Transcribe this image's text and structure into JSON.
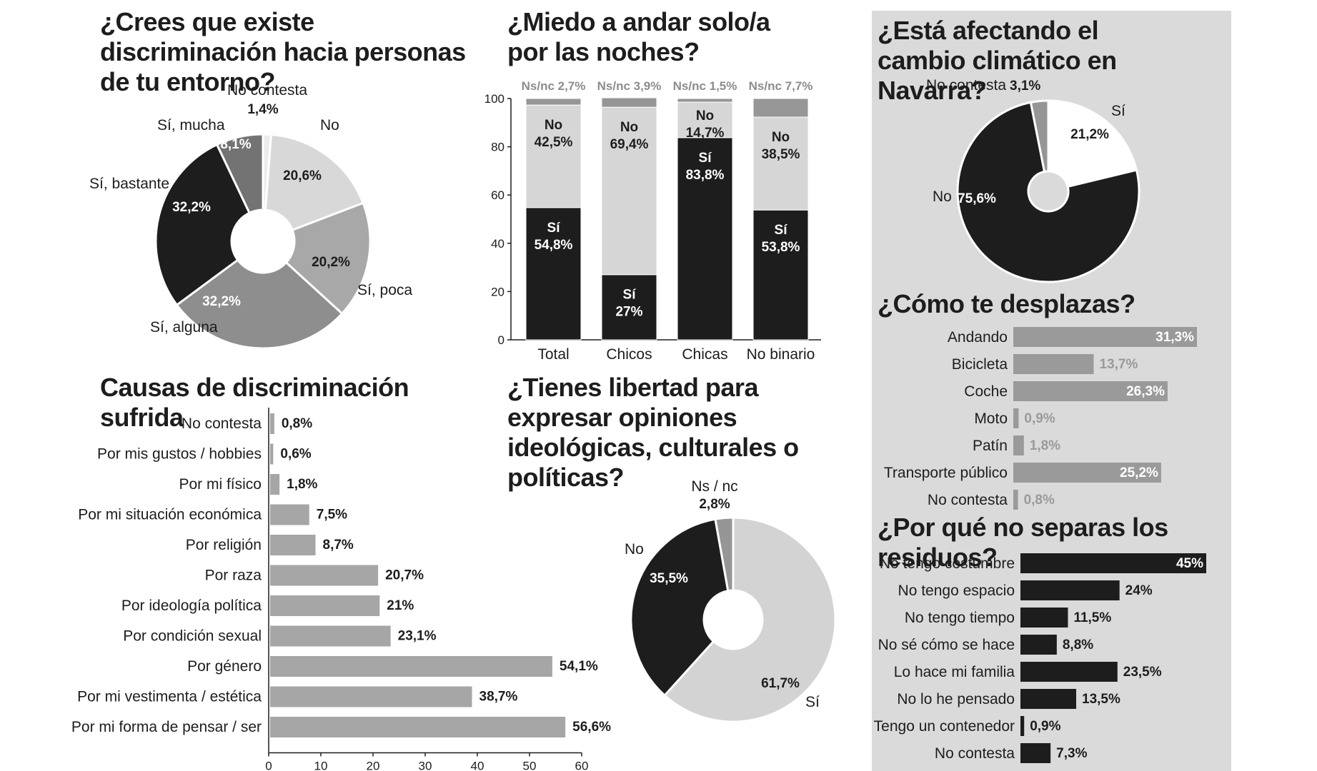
{
  "titles": {
    "discriminacion": "¿Crees que existe discriminación hacia personas de tu entorno?",
    "miedo": "¿Miedo a andar solo/a por las noches?",
    "clima": "¿Está afectando el cambio climático en Navarra?",
    "causas": "Causas de discriminación sufrida",
    "libertad": "¿Tienes libertad para expresar opiniones ideológicas, culturales o políticas?",
    "desplazas": "¿Cómo te desplazas?",
    "residuos": "¿Por qué no separas los residuos?"
  },
  "colors": {
    "black": "#1d1d1d",
    "dark_gray": "#6a6a6a",
    "mid_gray": "#969696",
    "light_gray": "#d6d6d6",
    "lighter_gray": "#ebebeb",
    "panel": "#dadada"
  },
  "chart_data": [
    {
      "id": "discriminacion",
      "type": "pie",
      "title": "¿Crees que existe discriminación hacia personas de tu entorno?",
      "slices": [
        {
          "label": "No contesta",
          "value": 1.4,
          "text": "1,4%",
          "color": "#ececec"
        },
        {
          "label": "No",
          "value": 20.6,
          "text": "20,6%",
          "color": "#d8d8d8"
        },
        {
          "label": "Sí, poca",
          "value": 20.2,
          "text": "20,2%",
          "color": "#a8a8a8"
        },
        {
          "label": "Sí, alguna",
          "value": 32.2,
          "text": "32,2%",
          "color": "#8e8e8e"
        },
        {
          "label": "Sí, bastante",
          "value": 32.2,
          "text": "32,2%",
          "color": "#1d1d1d"
        },
        {
          "label": "Sí, mucha",
          "value": 8.1,
          "text": "8,1%",
          "color": "#737373"
        }
      ]
    },
    {
      "id": "miedo",
      "type": "bar",
      "stacked": true,
      "title": "¿Miedo a andar solo/a por las noches?",
      "categories": [
        "Total",
        "Chicos",
        "Chicas",
        "No binario"
      ],
      "ylim": [
        0,
        100
      ],
      "yticks": [
        "0",
        "20",
        "40",
        "60",
        "80",
        "100"
      ],
      "series": [
        {
          "name": "Sí",
          "values": [
            54.8,
            27,
            83.8,
            53.8
          ],
          "texts": [
            "54,8%",
            "27%",
            "83,8%",
            "53,8%"
          ],
          "color": "#1d1d1d"
        },
        {
          "name": "No",
          "values": [
            42.5,
            69.4,
            14.7,
            38.5
          ],
          "texts": [
            "42,5%",
            "69,4%",
            "14,7%",
            "38,5%"
          ],
          "color": "#d6d6d6"
        },
        {
          "name": "Ns/nc",
          "values": [
            2.7,
            3.9,
            1.5,
            7.7
          ],
          "texts": [
            "Ns/nc 2,7%",
            "Ns/nc 3,9%",
            "Ns/nc 1,5%",
            "Ns/nc 7,7%"
          ],
          "color": "#969696"
        }
      ]
    },
    {
      "id": "clima",
      "type": "pie",
      "title": "¿Está afectando el cambio climático en Navarra?",
      "slices": [
        {
          "label": "Sí",
          "value": 21.2,
          "text": "21,2%",
          "color": "#ffffff"
        },
        {
          "label": "No",
          "value": 75.6,
          "text": "75,6%",
          "color": "#1d1d1d"
        },
        {
          "label": "No contesta",
          "value": 3.1,
          "text": "3,1%",
          "color": "#969696"
        }
      ]
    },
    {
      "id": "causas",
      "type": "bar",
      "orientation": "horizontal",
      "title": "Causas de discriminación sufrida",
      "categories": [
        "No contesta",
        "Por mis gustos / hobbies",
        "Por mi físico",
        "Por mi situación económica",
        "Por religión",
        "Por raza",
        "Por ideología política",
        "Por condición sexual",
        "Por género",
        "Por mi vestimenta / estética",
        "Por mi forma de pensar / ser"
      ],
      "values": [
        0.8,
        0.6,
        1.8,
        7.5,
        8.7,
        20.7,
        21,
        23.1,
        54.1,
        38.7,
        56.6
      ],
      "texts": [
        "0,8%",
        "0,6%",
        "1,8%",
        "7,5%",
        "8,7%",
        "20,7%",
        "21%",
        "23,1%",
        "54,1%",
        "38,7%",
        "56,6%"
      ],
      "xlim": [
        0,
        60
      ],
      "xticks": [
        "0",
        "10",
        "20",
        "30",
        "40",
        "50",
        "60"
      ],
      "color": "#a6a6a6"
    },
    {
      "id": "libertad",
      "type": "pie",
      "title": "¿Tienes libertad para expresar opiniones ideológicas, culturales o políticas?",
      "slices": [
        {
          "label": "Sí",
          "value": 61.7,
          "text": "61,7%",
          "color": "#d3d3d3"
        },
        {
          "label": "No",
          "value": 35.5,
          "text": "35,5%",
          "color": "#1d1d1d"
        },
        {
          "label": "Ns / nc",
          "value": 2.8,
          "text": "2,8%",
          "color": "#969696"
        }
      ]
    },
    {
      "id": "desplazas",
      "type": "bar",
      "orientation": "horizontal",
      "title": "¿Cómo te desplazas?",
      "categories": [
        "Andando",
        "Bicicleta",
        "Coche",
        "Moto",
        "Patín",
        "Transporte público",
        "No contesta"
      ],
      "values": [
        31.3,
        13.7,
        26.3,
        0.9,
        1.8,
        25.2,
        0.8
      ],
      "texts": [
        "31,3%",
        "13,7%",
        "26,3%",
        "0,9%",
        "1,8%",
        "25,2%",
        "0,8%"
      ],
      "color": "#9a9a9a"
    },
    {
      "id": "residuos",
      "type": "bar",
      "orientation": "horizontal",
      "title": "¿Por qué no separas los residuos?",
      "categories": [
        "No tengo costumbre",
        "No tengo espacio",
        "No tengo tiempo",
        "No sé cómo se hace",
        "Lo hace mi familia",
        "No lo he pensado",
        "Tengo un contenedor",
        "No contesta"
      ],
      "values": [
        45,
        24,
        11.5,
        8.8,
        23.5,
        13.5,
        0.9,
        7.3
      ],
      "texts": [
        "45%",
        "24%",
        "11,5%",
        "8,8%",
        "23,5%",
        "13,5%",
        "0,9%",
        "7,3%"
      ],
      "color": "#1d1d1d"
    }
  ]
}
